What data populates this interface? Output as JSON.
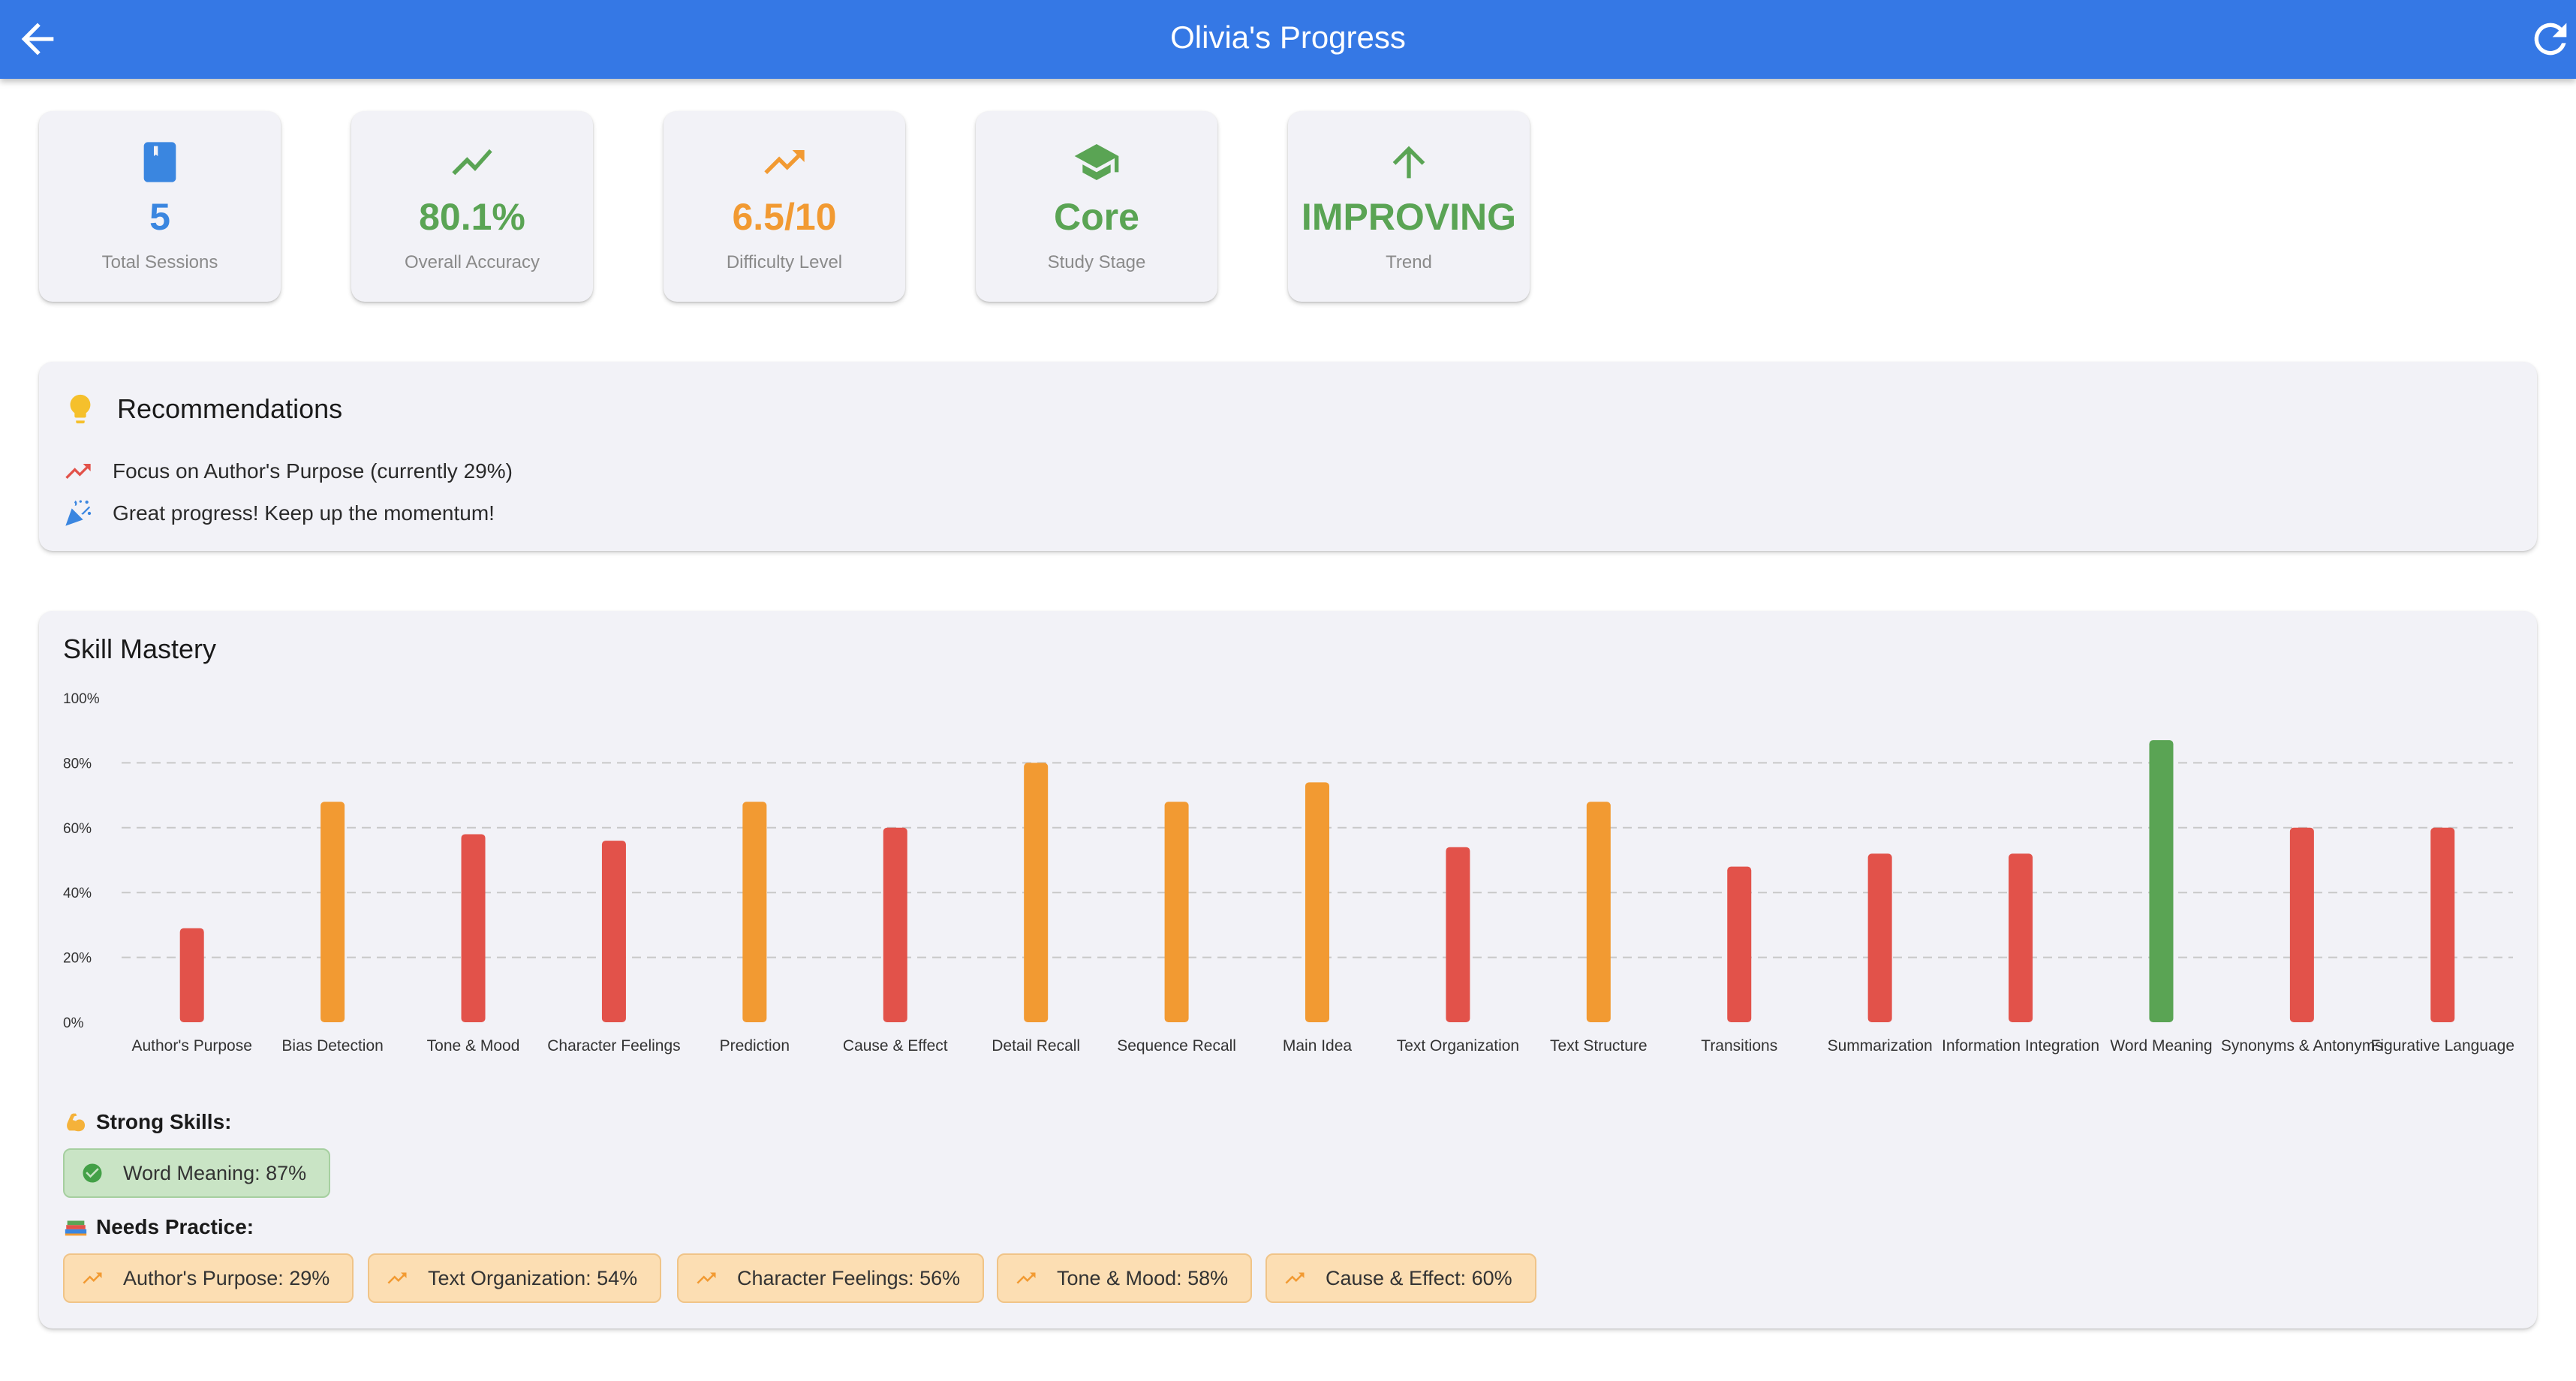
{
  "header": {
    "title": "Olivia's Progress",
    "back_icon": "arrow-back-icon",
    "refresh_icon": "refresh-icon",
    "color": "#3578e5"
  },
  "stats": [
    {
      "icon": "book-icon",
      "value": "5",
      "label": "Total Sessions",
      "color": "#3a86e0"
    },
    {
      "icon": "trending-up-icon",
      "value": "80.1%",
      "label": "Overall Accuracy",
      "color": "#5aa454"
    },
    {
      "icon": "trending-up-arrow-icon",
      "value": "6.5/10",
      "label": "Difficulty Level",
      "color": "#f29a32"
    },
    {
      "icon": "school-icon",
      "value": "Core",
      "label": "Study Stage",
      "color": "#5aa454"
    },
    {
      "icon": "arrow-up-icon",
      "value": "IMPROVING",
      "label": "Trend",
      "color": "#5aa454"
    }
  ],
  "recommendations": {
    "title": "Recommendations",
    "icon": "lightbulb-icon",
    "items": [
      {
        "icon": "trending-up-icon",
        "text": "Focus on Author's Purpose (currently 29%)"
      },
      {
        "icon": "celebration-icon",
        "text": "Great progress! Keep up the momentum!"
      }
    ]
  },
  "mastery": {
    "title": "Skill Mastery",
    "strong_title": "Strong Skills:",
    "practice_title": "Needs Practice:",
    "strong": [
      "Word Meaning: 87%"
    ],
    "practice": [
      "Author's Purpose: 29%",
      "Text Organization: 54%",
      "Character Feelings: 56%",
      "Tone & Mood: 58%",
      "Cause & Effect: 60%"
    ]
  },
  "chart_data": {
    "type": "bar",
    "categories": [
      "Author's Purpose",
      "Bias Detection",
      "Tone & Mood",
      "Character Feelings",
      "Prediction",
      "Cause & Effect",
      "Detail Recall",
      "Sequence Recall",
      "Main Idea",
      "Text Organization",
      "Text Structure",
      "Transitions",
      "Summarization",
      "Information Integration",
      "Word Meaning",
      "Synonyms & Antonyms",
      "Figurative Language"
    ],
    "values": [
      29,
      68,
      58,
      56,
      68,
      60,
      80,
      68,
      74,
      54,
      68,
      48,
      52,
      52,
      87,
      60,
      60
    ],
    "ylim": [
      0,
      100
    ],
    "yticks": [
      "0%",
      "20%",
      "40%",
      "60%",
      "80%",
      "100%"
    ],
    "grid": true,
    "colors": {
      "low": "#e2524a",
      "mid": "#f29a32",
      "high": "#5aa454"
    }
  }
}
